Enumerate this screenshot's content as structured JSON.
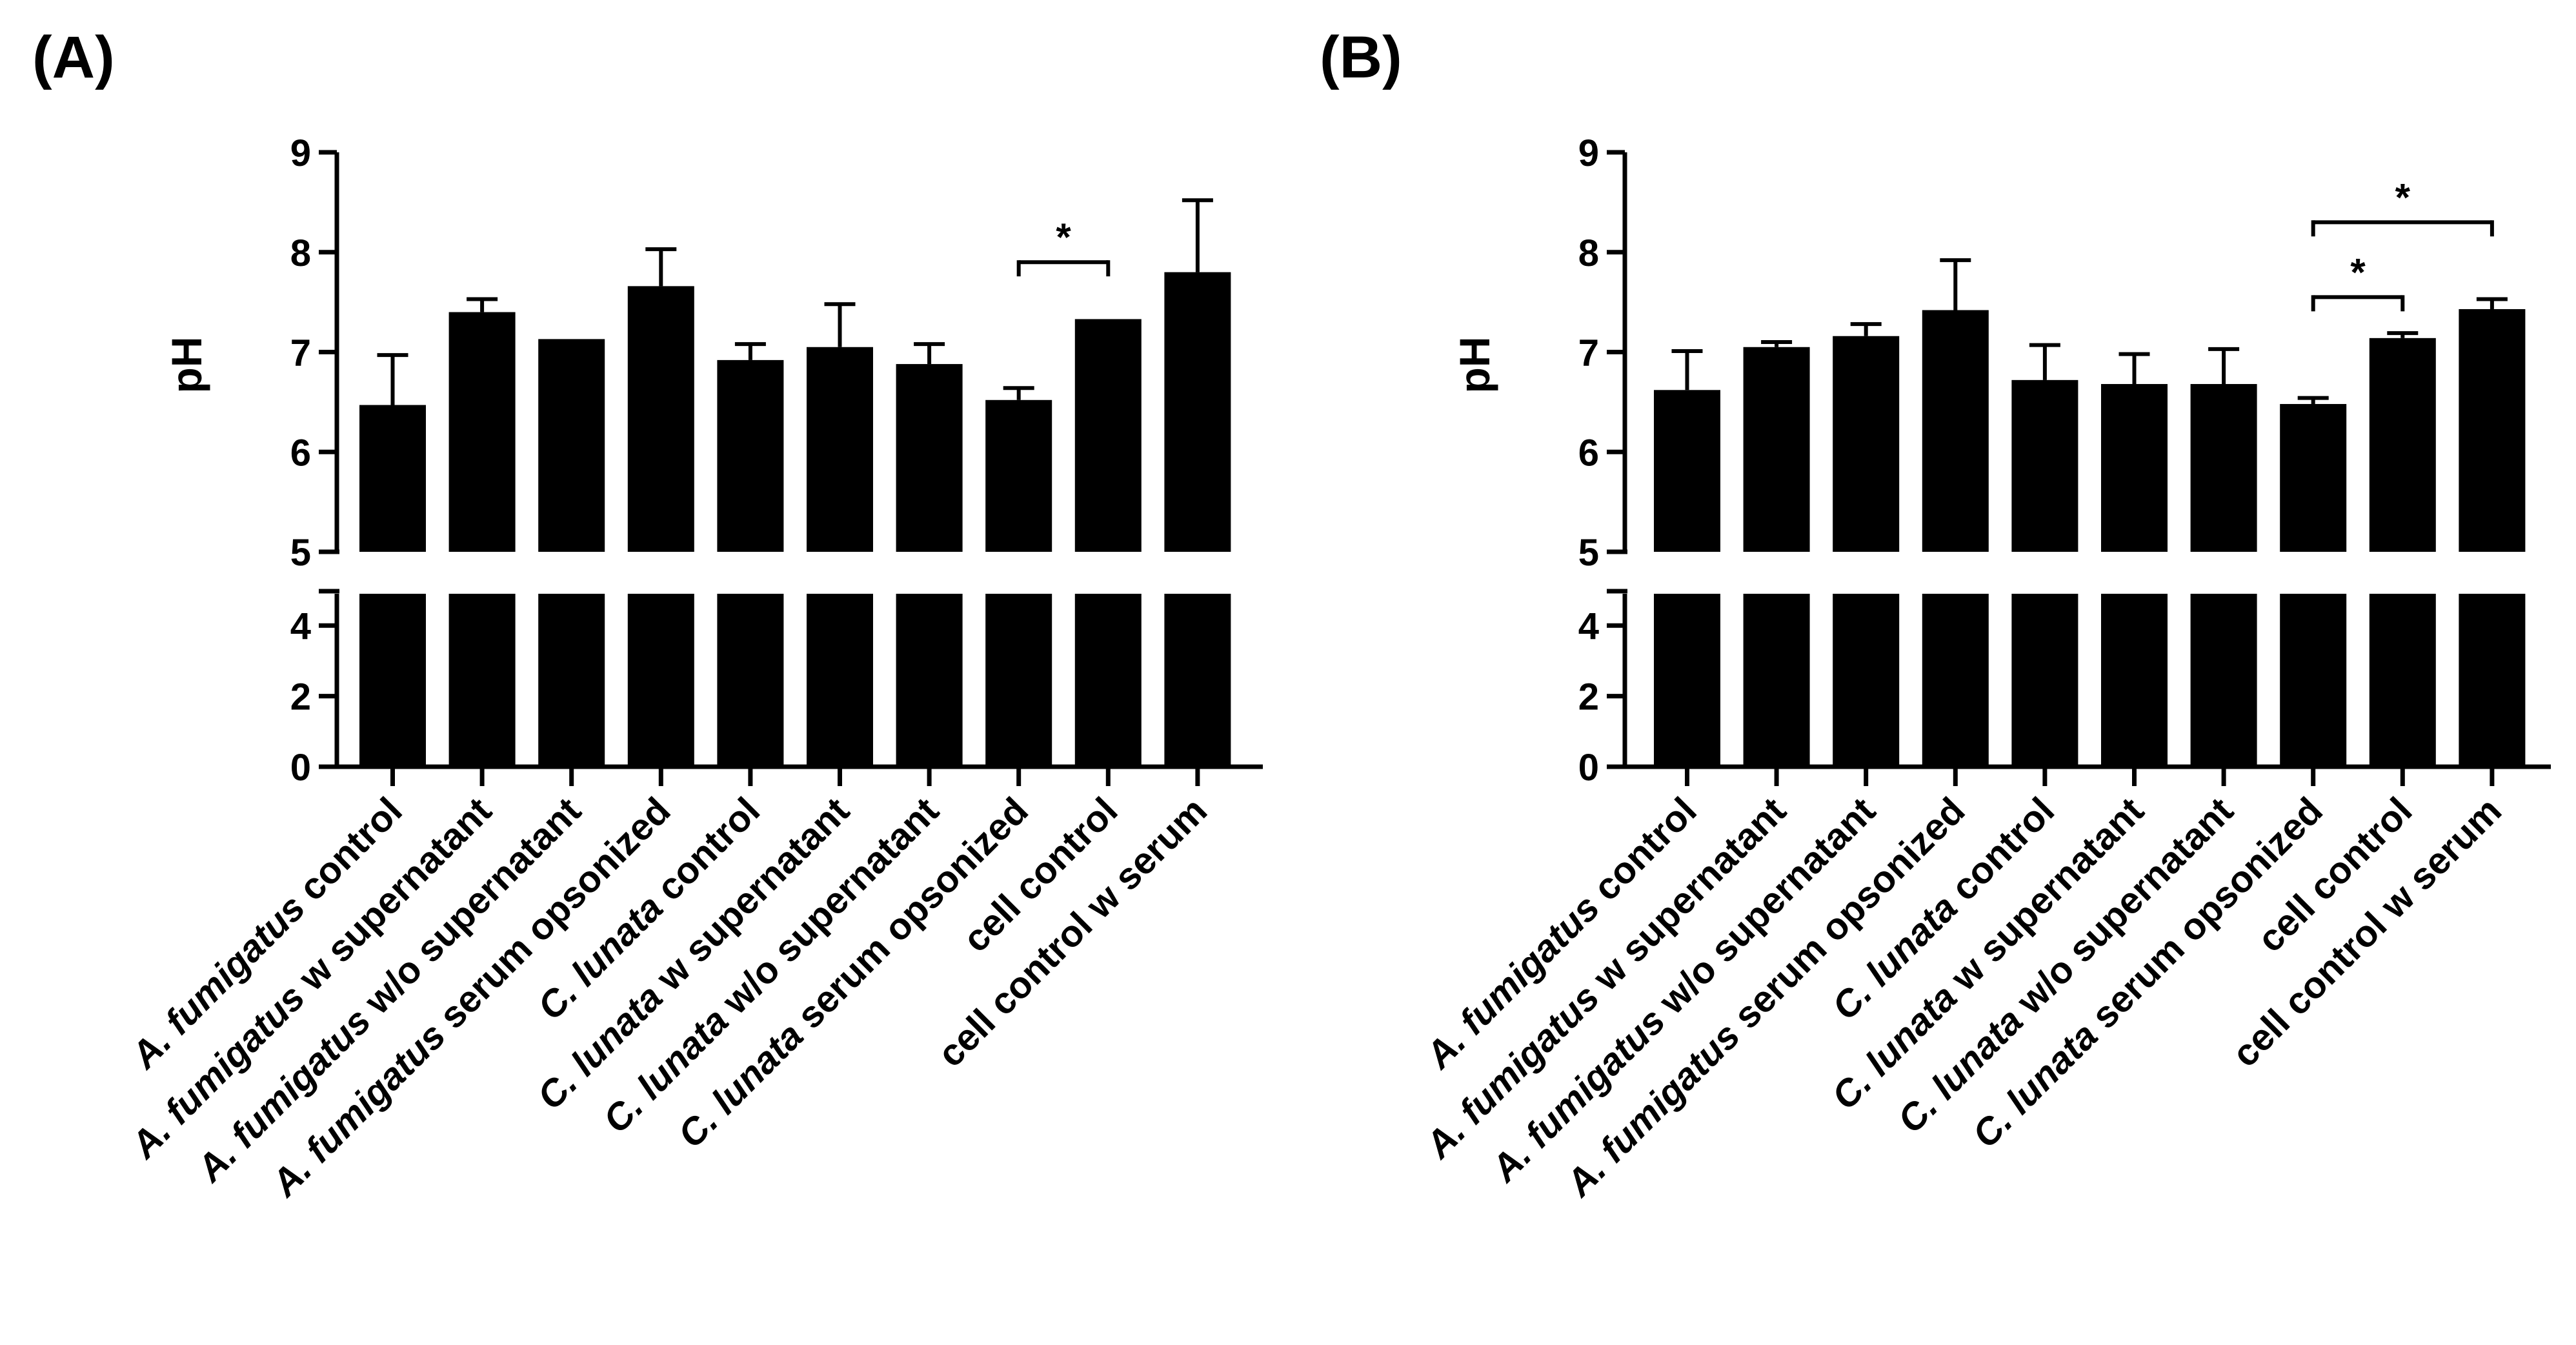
{
  "chart_data": [
    {
      "type": "bar",
      "panel_label": "(A)",
      "ylabel": "pH",
      "ylim": [
        0,
        9
      ],
      "y_axis_break": [
        4.9,
        5.0
      ],
      "yticks_lower": [
        "0",
        "2",
        "4"
      ],
      "yticks_upper": [
        "5",
        "6",
        "7",
        "8",
        "9"
      ],
      "categories": [
        {
          "italic": "A. fumigatus",
          "rest": " control"
        },
        {
          "italic": "A. fumigatus",
          "rest": " w supernatant"
        },
        {
          "italic": "A. fumigatus",
          "rest": " w/o supernatant"
        },
        {
          "italic": "A. fumigatus",
          "rest": " serum opsonized"
        },
        {
          "italic": "C. lunata",
          "rest": " control"
        },
        {
          "italic": "C. lunata",
          "rest": " w supernatant"
        },
        {
          "italic": "C. lunata",
          "rest": " w/o supernatant"
        },
        {
          "italic": "C. lunata",
          "rest": " serum opsonized"
        },
        {
          "italic": "",
          "rest": "cell control"
        },
        {
          "italic": "",
          "rest": "cell control w serum"
        }
      ],
      "values": [
        6.47,
        7.4,
        7.13,
        7.66,
        6.92,
        7.05,
        6.88,
        6.52,
        7.33,
        7.8
      ],
      "errors": [
        0.5,
        0.13,
        0,
        0.37,
        0.16,
        0.43,
        0.2,
        0.12,
        0,
        0.72
      ],
      "significance": [
        {
          "from": 7,
          "to": 8,
          "label": "*"
        }
      ]
    },
    {
      "type": "bar",
      "panel_label": "(B)",
      "ylabel": "pH",
      "ylim": [
        0,
        9
      ],
      "y_axis_break": [
        4.9,
        5.0
      ],
      "yticks_lower": [
        "0",
        "2",
        "4"
      ],
      "yticks_upper": [
        "5",
        "6",
        "7",
        "8",
        "9"
      ],
      "categories": [
        {
          "italic": "A. fumigatus",
          "rest": " control"
        },
        {
          "italic": "A. fumigatus",
          "rest": " w supernatant"
        },
        {
          "italic": "A. fumigatus",
          "rest": " w/o supernatant"
        },
        {
          "italic": "A. fumigatus",
          "rest": " serum opsonized"
        },
        {
          "italic": "C. lunata",
          "rest": " control"
        },
        {
          "italic": "C. lunata",
          "rest": " w supernatant"
        },
        {
          "italic": "C. lunata",
          "rest": " w/o supernatant"
        },
        {
          "italic": "C. lunata",
          "rest": " serum opsonized"
        },
        {
          "italic": "",
          "rest": "cell control"
        },
        {
          "italic": "",
          "rest": "cell control w serum"
        }
      ],
      "values": [
        6.62,
        7.05,
        7.16,
        7.42,
        6.72,
        6.68,
        6.68,
        6.48,
        7.14,
        7.43
      ],
      "errors": [
        0.39,
        0.05,
        0.12,
        0.5,
        0.35,
        0.3,
        0.35,
        0.06,
        0.05,
        0.1
      ],
      "significance": [
        {
          "from": 7,
          "to": 8,
          "label": "*"
        },
        {
          "from": 7,
          "to": 9,
          "label": "*"
        }
      ]
    }
  ]
}
